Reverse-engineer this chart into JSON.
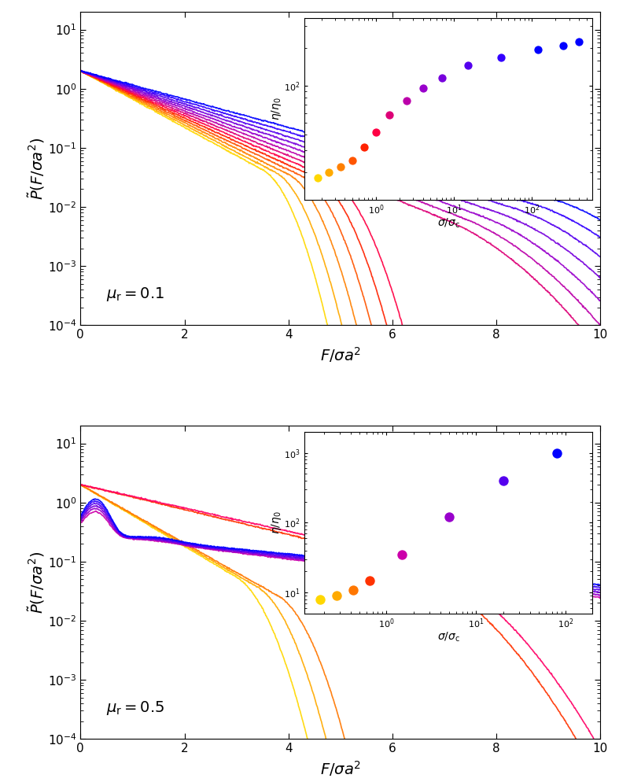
{
  "panel1_label": "$\\mu_{\\rm r} = 0.1$",
  "panel2_label": "$\\mu_{\\rm r} = 0.5$",
  "colors_13": [
    "#FFD700",
    "#FFAA00",
    "#FF8000",
    "#FF5500",
    "#FF2200",
    "#FF0044",
    "#DD0077",
    "#BB00AA",
    "#9900CC",
    "#7700DD",
    "#5500EE",
    "#3300FF",
    "#0000FF"
  ],
  "colors_11": [
    "#FFD700",
    "#FFAA00",
    "#FF7700",
    "#FF3300",
    "#FF0066",
    "#CC00AA",
    "#9900CC",
    "#7700DD",
    "#5500EE",
    "#3300FF",
    "#0000FF"
  ],
  "p1_inset_sigma": [
    0.18,
    0.25,
    0.35,
    0.5,
    0.7,
    1.0,
    1.5,
    2.5,
    4.0,
    7.0,
    15.0,
    40.0,
    120.0,
    250.0,
    400.0
  ],
  "p1_inset_eta": [
    18,
    20,
    22,
    25,
    32,
    42,
    58,
    75,
    95,
    115,
    145,
    168,
    195,
    210,
    225
  ],
  "p2_inset_sigma": [
    0.18,
    0.28,
    0.42,
    0.65,
    1.5,
    5.0,
    20.0,
    80.0
  ],
  "p2_inset_eta": [
    8,
    9,
    11,
    15,
    35,
    120,
    400,
    1000
  ],
  "p2_inset_colors": [
    "#FFD700",
    "#FFAA00",
    "#FF7700",
    "#FF3300",
    "#CC00AA",
    "#9900CC",
    "#5500EE",
    "#0000FF"
  ],
  "xlabel": "$F/\\sigma a^2$",
  "ylabel": "$\\tilde{P}(F/\\sigma a^2)$",
  "inset_xlabel": "$\\sigma/\\sigma_{\\rm c}$",
  "inset_ylabel": "$\\eta/\\eta_0$"
}
